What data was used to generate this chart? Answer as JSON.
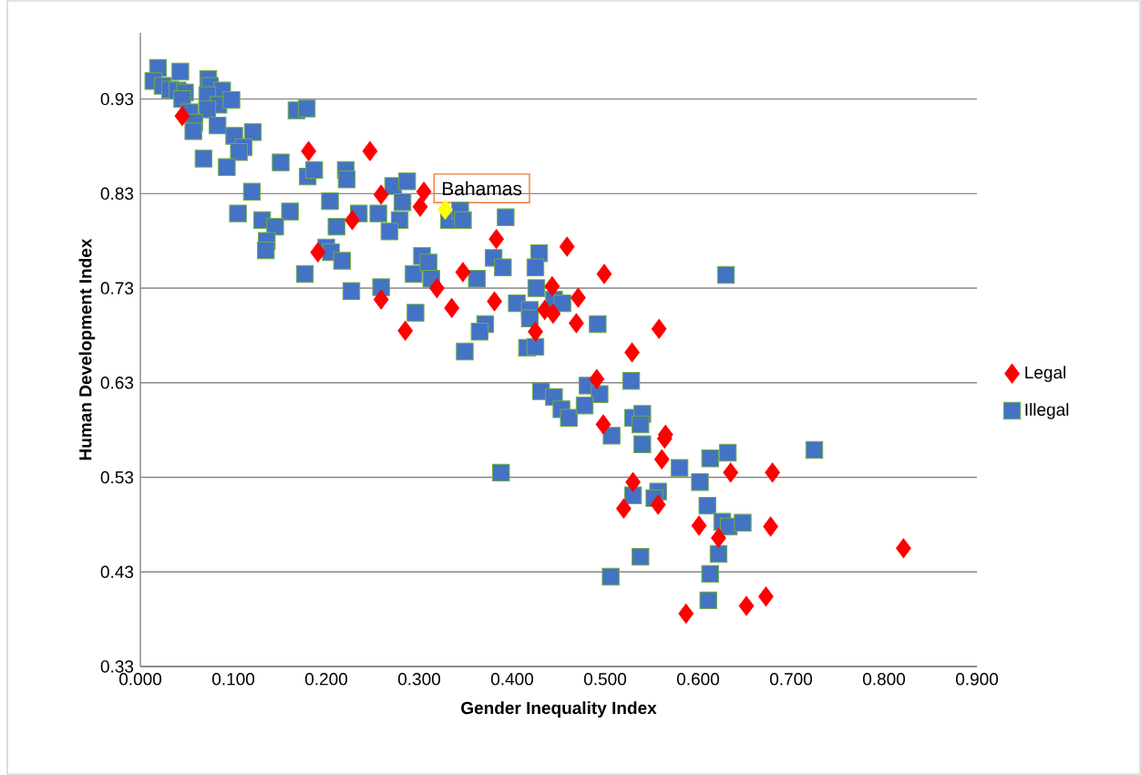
{
  "chart_data": {
    "type": "scatter",
    "xlabel": "Gender Inequality Index",
    "ylabel": "Human Development Index",
    "xlim": [
      0,
      0.9
    ],
    "ylim": [
      0.33,
      1.0
    ],
    "xticks": [
      {
        "value": 0,
        "label": "0.000"
      },
      {
        "value": 0.1,
        "label": "0.100"
      },
      {
        "value": 0.2,
        "label": "0.200"
      },
      {
        "value": 0.3,
        "label": "0.300"
      },
      {
        "value": 0.4,
        "label": "0.400"
      },
      {
        "value": 0.5,
        "label": "0.500"
      },
      {
        "value": 0.6,
        "label": "0.600"
      },
      {
        "value": 0.7,
        "label": "0.700"
      },
      {
        "value": 0.8,
        "label": "0.800"
      },
      {
        "value": 0.9,
        "label": "0.900"
      }
    ],
    "yticks": [
      0.33,
      0.43,
      0.53,
      0.63,
      0.73,
      0.83,
      0.93
    ],
    "grid": "y",
    "legend": "right",
    "annotations": [
      {
        "text": "Bahamas",
        "x": 0.328,
        "y": 0.813
      }
    ],
    "series": [
      {
        "name": "Legal",
        "color": "#ff0000",
        "marker": "diamond",
        "x": [
          0.045,
          0.181,
          0.247,
          0.259,
          0.305,
          0.301,
          0.228,
          0.191,
          0.259,
          0.285,
          0.319,
          0.335,
          0.347,
          0.381,
          0.383,
          0.459,
          0.499,
          0.443,
          0.471,
          0.435,
          0.444,
          0.469,
          0.425,
          0.558,
          0.529,
          0.491,
          0.498,
          0.565,
          0.564,
          0.561,
          0.635,
          0.68,
          0.53,
          0.52,
          0.557,
          0.601,
          0.622,
          0.678,
          0.821,
          0.587,
          0.652,
          0.673
        ],
        "values": [
          0.912,
          0.875,
          0.875,
          0.829,
          0.832,
          0.816,
          0.802,
          0.768,
          0.718,
          0.685,
          0.73,
          0.709,
          0.747,
          0.716,
          0.782,
          0.774,
          0.745,
          0.732,
          0.72,
          0.707,
          0.703,
          0.693,
          0.684,
          0.687,
          0.662,
          0.634,
          0.586,
          0.575,
          0.571,
          0.549,
          0.535,
          0.535,
          0.525,
          0.497,
          0.501,
          0.479,
          0.466,
          0.478,
          0.455,
          0.386,
          0.394,
          0.404
        ]
      },
      {
        "name": "Illegal",
        "color": "#4472c4",
        "marker": "square",
        "x": [
          0.019,
          0.014,
          0.043,
          0.024,
          0.032,
          0.04,
          0.048,
          0.045,
          0.073,
          0.075,
          0.088,
          0.072,
          0.084,
          0.098,
          0.053,
          0.072,
          0.058,
          0.057,
          0.083,
          0.101,
          0.121,
          0.111,
          0.106,
          0.068,
          0.093,
          0.151,
          0.168,
          0.179,
          0.18,
          0.187,
          0.221,
          0.222,
          0.272,
          0.287,
          0.12,
          0.204,
          0.282,
          0.235,
          0.256,
          0.279,
          0.105,
          0.131,
          0.161,
          0.145,
          0.211,
          0.268,
          0.136,
          0.135,
          0.2,
          0.205,
          0.217,
          0.177,
          0.227,
          0.259,
          0.296,
          0.294,
          0.303,
          0.31,
          0.313,
          0.332,
          0.344,
          0.347,
          0.393,
          0.362,
          0.38,
          0.39,
          0.429,
          0.425,
          0.426,
          0.405,
          0.419,
          0.419,
          0.371,
          0.365,
          0.349,
          0.416,
          0.425,
          0.445,
          0.454,
          0.492,
          0.528,
          0.431,
          0.445,
          0.453,
          0.461,
          0.481,
          0.494,
          0.478,
          0.507,
          0.53,
          0.54,
          0.538,
          0.54,
          0.388,
          0.58,
          0.602,
          0.613,
          0.632,
          0.725,
          0.53,
          0.557,
          0.553,
          0.61,
          0.626,
          0.633,
          0.648,
          0.622,
          0.538,
          0.506,
          0.613,
          0.611,
          0.63
        ],
        "values": [
          0.963,
          0.949,
          0.959,
          0.944,
          0.94,
          0.939,
          0.937,
          0.93,
          0.951,
          0.944,
          0.939,
          0.934,
          0.924,
          0.929,
          0.916,
          0.919,
          0.905,
          0.896,
          0.902,
          0.891,
          0.895,
          0.879,
          0.874,
          0.867,
          0.858,
          0.863,
          0.918,
          0.92,
          0.848,
          0.855,
          0.855,
          0.845,
          0.838,
          0.843,
          0.832,
          0.822,
          0.821,
          0.809,
          0.809,
          0.802,
          0.809,
          0.802,
          0.811,
          0.795,
          0.795,
          0.79,
          0.78,
          0.77,
          0.773,
          0.768,
          0.759,
          0.745,
          0.727,
          0.731,
          0.704,
          0.745,
          0.764,
          0.757,
          0.74,
          0.802,
          0.812,
          0.802,
          0.805,
          0.74,
          0.762,
          0.752,
          0.767,
          0.752,
          0.73,
          0.714,
          0.707,
          0.698,
          0.692,
          0.684,
          0.663,
          0.667,
          0.668,
          0.718,
          0.714,
          0.692,
          0.632,
          0.621,
          0.615,
          0.602,
          0.593,
          0.627,
          0.618,
          0.606,
          0.574,
          0.593,
          0.597,
          0.586,
          0.565,
          0.535,
          0.54,
          0.525,
          0.55,
          0.556,
          0.559,
          0.511,
          0.515,
          0.508,
          0.5,
          0.483,
          0.478,
          0.482,
          0.449,
          0.446,
          0.425,
          0.428,
          0.4,
          0.744
        ]
      },
      {
        "color": "#ffff00",
        "marker": "diamond",
        "x": [
          0.328
        ],
        "values": [
          0.813
        ]
      }
    ]
  }
}
